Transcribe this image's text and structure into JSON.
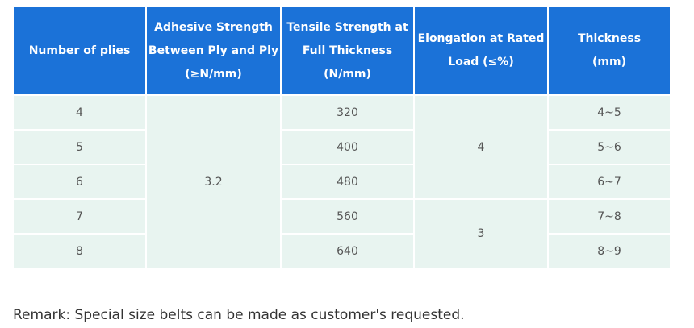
{
  "table": {
    "header": [
      [
        "Number of plies"
      ],
      [
        "Adhesive Strength",
        "Between Ply and Ply",
        "(≥N/mm)"
      ],
      [
        "Tensile Strength at",
        "Full Thickness",
        "(N/mm)"
      ],
      [
        "Elongation at Rated",
        "Load (≤%)"
      ],
      [
        "Thickness",
        "(mm)"
      ]
    ],
    "rows": [
      [
        "4",
        "3.2",
        "320",
        "4",
        "4~5"
      ],
      [
        "5",
        "400",
        "5~6"
      ],
      [
        "6",
        "480",
        "6~7"
      ],
      [
        "7",
        "560",
        "3",
        "7~8"
      ],
      [
        "8",
        "640",
        "8~9"
      ]
    ]
  },
  "remark": "Remark: Special size belts can be made as customer's requested."
}
